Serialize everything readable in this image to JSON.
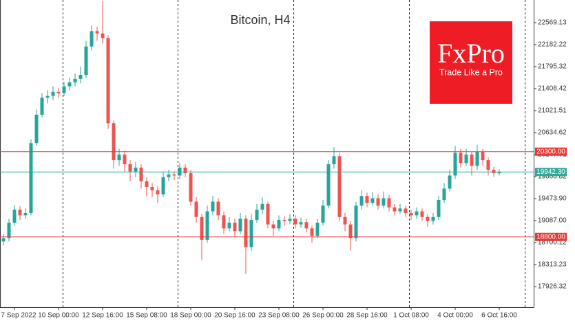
{
  "chart_data": {
    "type": "candlestick",
    "title": "Bitcoin, H4",
    "categories": [
      null,
      null,
      "7 Sep 2022",
      null,
      null,
      null,
      null,
      null,
      null,
      null,
      "10 Sep 00:00",
      null,
      null,
      null,
      null,
      null,
      null,
      null,
      "12 Sep 16:00",
      null,
      null,
      null,
      null,
      null,
      null,
      null,
      "15 Sep 08:00",
      null,
      null,
      null,
      null,
      null,
      null,
      null,
      "18 Sep 00:00",
      null,
      null,
      null,
      null,
      null,
      null,
      null,
      "20 Sep 16:00",
      null,
      null,
      null,
      null,
      null,
      null,
      null,
      "23 Sep 08:00",
      null,
      null,
      null,
      null,
      null,
      null,
      null,
      "26 Sep 00:00",
      null,
      null,
      null,
      null,
      null,
      null,
      null,
      "28 Sep 16:00",
      null,
      null,
      null,
      null,
      null,
      null,
      null,
      "1 Oct 08:00",
      null,
      null,
      null,
      null,
      null,
      null,
      null,
      "4 Oct 00:00",
      null,
      null,
      null,
      null,
      null,
      null,
      null,
      "6 Oct 16:00"
    ],
    "open": [
      18720,
      18780,
      19050,
      19280,
      19180,
      19220,
      20450,
      20950,
      21250,
      21280,
      21350,
      21330,
      21450,
      21520,
      21580,
      21650,
      22150,
      22420,
      22380,
      22300,
      20800,
      20150,
      20250,
      20080,
      19950,
      20020,
      19780,
      19680,
      19620,
      19550,
      19850,
      19900,
      19880,
      20020,
      19920,
      19420,
      19150,
      18750,
      19250,
      19420,
      19180,
      18950,
      19050,
      18900,
      19120,
      18620,
      19100,
      19280,
      19380,
      19020,
      18950,
      19100,
      19080,
      19120,
      19020,
      19060,
      18950,
      18820,
      19050,
      19350,
      20080,
      20220,
      19150,
      19020,
      18780,
      19350,
      19520,
      19400,
      19480,
      19350,
      19480,
      19320,
      19250,
      19300,
      19220,
      19180,
      19250,
      19150,
      19080,
      19150,
      19450,
      19650,
      19880,
      20280,
      20100,
      20250,
      20050,
      20300,
      20150,
      19980,
      19920
    ],
    "high": [
      18850,
      19120,
      19360,
      19340,
      19300,
      20520,
      21050,
      21330,
      21380,
      21450,
      21420,
      21530,
      21600,
      21680,
      21800,
      22250,
      22520,
      22500,
      22950,
      22350,
      20850,
      20350,
      20320,
      20150,
      20120,
      20080,
      19850,
      19750,
      19700,
      19950,
      19980,
      19950,
      20100,
      20080,
      19980,
      19500,
      19200,
      19350,
      19520,
      19480,
      19250,
      19150,
      19120,
      19220,
      19180,
      19200,
      19380,
      19500,
      19420,
      19080,
      19180,
      19160,
      19200,
      19180,
      19140,
      19120,
      19000,
      19120,
      19450,
      20150,
      20380,
      20280,
      19220,
      19080,
      19420,
      19620,
      19580,
      19580,
      19550,
      19600,
      19540,
      19380,
      19380,
      19350,
      19280,
      19320,
      19300,
      19200,
      19220,
      19520,
      19750,
      19980,
      20400,
      20350,
      20350,
      20300,
      20420,
      20350,
      20200,
      20030,
      19990
    ],
    "low": [
      18650,
      18720,
      19000,
      19100,
      19120,
      19180,
      20400,
      20900,
      21150,
      21200,
      21250,
      21280,
      21380,
      21450,
      21500,
      21600,
      22080,
      22250,
      22200,
      20700,
      20000,
      20050,
      19950,
      19780,
      19850,
      19650,
      19520,
      19500,
      19400,
      19500,
      19780,
      19800,
      19820,
      19850,
      19350,
      19050,
      18400,
      18700,
      19180,
      19100,
      18850,
      18900,
      18800,
      18850,
      18150,
      18550,
      19050,
      19200,
      18950,
      18820,
      18900,
      19000,
      19020,
      18950,
      18960,
      18880,
      18700,
      18780,
      19000,
      19300,
      20000,
      19080,
      18900,
      18560,
      18720,
      19280,
      19320,
      19350,
      19280,
      19300,
      19250,
      19180,
      19200,
      19150,
      19100,
      19120,
      19080,
      18980,
      19020,
      19100,
      19400,
      19600,
      19820,
      20020,
      20050,
      19880,
      19980,
      20050,
      19880,
      19860,
      19880
    ],
    "close": [
      18780,
      19050,
      19280,
      19180,
      19220,
      20450,
      20950,
      21250,
      21280,
      21350,
      21330,
      21450,
      21520,
      21580,
      21650,
      22150,
      22420,
      22380,
      22300,
      20800,
      20150,
      20250,
      20080,
      19950,
      20020,
      19780,
      19680,
      19620,
      19550,
      19850,
      19900,
      19880,
      20020,
      19920,
      19420,
      19150,
      18750,
      19250,
      19420,
      19180,
      18950,
      19050,
      18900,
      19120,
      18620,
      19100,
      19280,
      19380,
      19020,
      18950,
      19100,
      19080,
      19120,
      19020,
      19060,
      18950,
      18820,
      19050,
      19350,
      20080,
      20220,
      19150,
      19020,
      18780,
      19350,
      19520,
      19400,
      19480,
      19350,
      19480,
      19320,
      19250,
      19300,
      19220,
      19180,
      19250,
      19150,
      19080,
      19150,
      19450,
      19650,
      19880,
      20280,
      20100,
      20250,
      20050,
      20300,
      20150,
      19980,
      19920,
      19942
    ],
    "up_color": "#26a69a",
    "down_color": "#ef5350",
    "ylim": [
      17564,
      22968
    ],
    "yticks": [
      22569.13,
      22182.22,
      21795.32,
      21408.42,
      21021.51,
      20634.62,
      20247.71,
      19860.82,
      {
        "value": 19473.9,
        "label": "19473.90"
      },
      {
        "value": 19087,
        "label": "19087.00"
      },
      18700.12,
      18313.23,
      17926.32
    ],
    "levels": [
      {
        "value": 20300,
        "label": "20300.00",
        "color": "#e53935"
      },
      {
        "value": 19942.3,
        "label": "19942.30",
        "color": "#2fa89a"
      },
      {
        "value": 18800,
        "label": "18800.00",
        "color": "#e53935"
      }
    ]
  },
  "logo": {
    "title": "FxPro",
    "tagline": "Trade Like a Pro",
    "color": "#ee1c25"
  }
}
